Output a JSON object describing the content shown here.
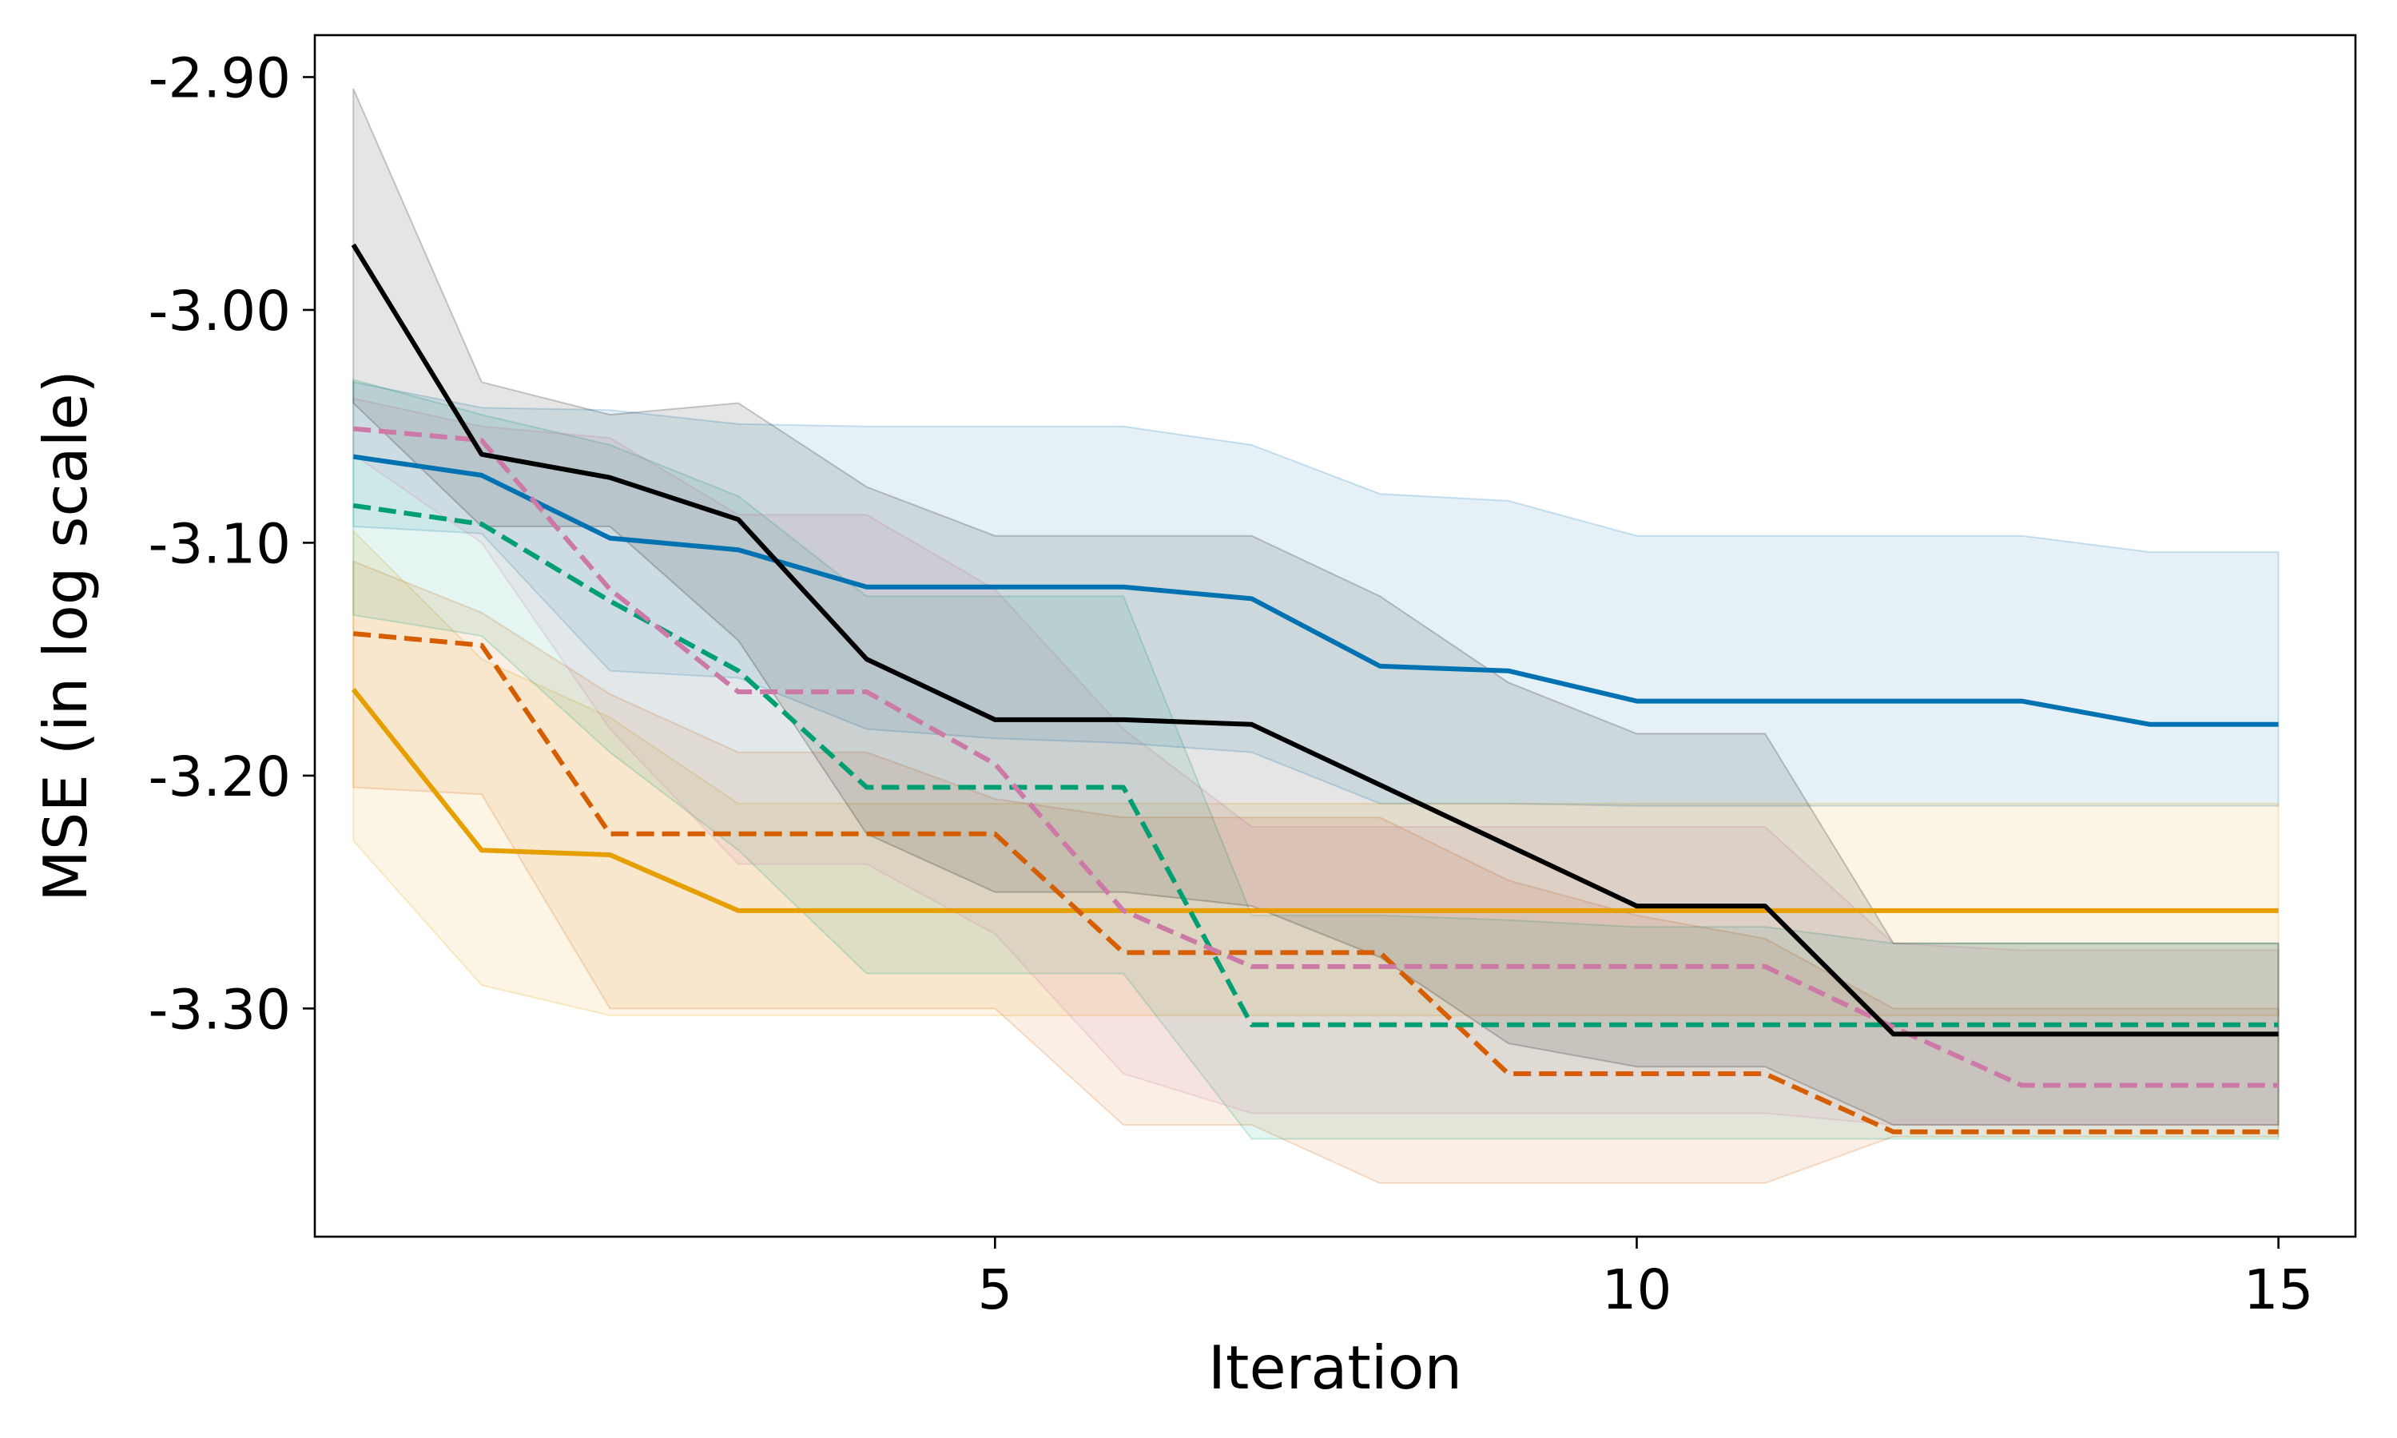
{
  "chart_data": {
    "type": "line",
    "title": "",
    "xlabel": "Iteration",
    "ylabel": "MSE (in log scale)",
    "xlim": [
      -0.3,
      15.6
    ],
    "ylim": [
      -3.398,
      -2.882
    ],
    "x_ticks": [
      5,
      10,
      15
    ],
    "x_tick_labels": [
      "5",
      "10",
      "15"
    ],
    "y_ticks": [
      -2.9,
      -3.0,
      -3.1,
      -3.2,
      -3.3
    ],
    "y_tick_labels": [
      "-2.90",
      "-3.00",
      "-3.10",
      "-3.20",
      "-3.30"
    ],
    "grid": false,
    "x": [
      0,
      1,
      2,
      3,
      4,
      5,
      6,
      7,
      8,
      9,
      10,
      11,
      12,
      13,
      14,
      15
    ],
    "series": [
      {
        "name": "blue",
        "color": "#0072b2",
        "dash": "solid",
        "values": [
          -3.063,
          -3.071,
          -3.098,
          -3.103,
          -3.119,
          -3.119,
          -3.119,
          -3.124,
          -3.153,
          -3.155,
          -3.168,
          -3.168,
          -3.168,
          -3.168,
          -3.178,
          -3.178
        ],
        "upper": [
          -3.031,
          -3.042,
          -3.043,
          -3.049,
          -3.05,
          -3.05,
          -3.05,
          -3.058,
          -3.079,
          -3.082,
          -3.097,
          -3.097,
          -3.097,
          -3.097,
          -3.104,
          -3.104
        ],
        "lower": [
          -3.093,
          -3.096,
          -3.155,
          -3.158,
          -3.18,
          -3.184,
          -3.186,
          -3.19,
          -3.212,
          -3.212,
          -3.213,
          -3.213,
          -3.213,
          -3.213,
          -3.213,
          -3.213
        ]
      },
      {
        "name": "orange",
        "color": "#e69f00",
        "dash": "solid",
        "values": [
          -3.163,
          -3.232,
          -3.234,
          -3.258,
          -3.258,
          -3.258,
          -3.258,
          -3.258,
          -3.258,
          -3.258,
          -3.258,
          -3.258,
          -3.258,
          -3.258,
          -3.258,
          -3.258
        ],
        "upper": [
          -3.095,
          -3.15,
          -3.175,
          -3.212,
          -3.212,
          -3.212,
          -3.212,
          -3.212,
          -3.212,
          -3.212,
          -3.212,
          -3.212,
          -3.212,
          -3.212,
          -3.212,
          -3.212
        ],
        "lower": [
          -3.228,
          -3.29,
          -3.303,
          -3.303,
          -3.303,
          -3.303,
          -3.303,
          -3.303,
          -3.303,
          -3.303,
          -3.303,
          -3.303,
          -3.303,
          -3.303,
          -3.303,
          -3.303
        ]
      },
      {
        "name": "vermillion",
        "color": "#d55e00",
        "dash": "dashed",
        "values": [
          -3.139,
          -3.144,
          -3.225,
          -3.225,
          -3.225,
          -3.225,
          -3.276,
          -3.276,
          -3.276,
          -3.328,
          -3.328,
          -3.328,
          -3.353,
          -3.353,
          -3.353,
          -3.353
        ],
        "upper": [
          -3.108,
          -3.13,
          -3.165,
          -3.19,
          -3.19,
          -3.21,
          -3.218,
          -3.218,
          -3.218,
          -3.245,
          -3.26,
          -3.27,
          -3.3,
          -3.3,
          -3.3,
          -3.3
        ],
        "lower": [
          -3.205,
          -3.208,
          -3.3,
          -3.3,
          -3.3,
          -3.3,
          -3.35,
          -3.35,
          -3.375,
          -3.375,
          -3.375,
          -3.375,
          -3.355,
          -3.355,
          -3.355,
          -3.355
        ]
      },
      {
        "name": "green",
        "color": "#009e73",
        "dash": "dashed",
        "values": [
          -3.084,
          -3.092,
          -3.125,
          -3.155,
          -3.205,
          -3.205,
          -3.205,
          -3.307,
          -3.307,
          -3.307,
          -3.307,
          -3.307,
          -3.307,
          -3.307,
          -3.307,
          -3.307
        ],
        "upper": [
          -3.03,
          -3.045,
          -3.058,
          -3.08,
          -3.123,
          -3.123,
          -3.123,
          -3.26,
          -3.26,
          -3.262,
          -3.265,
          -3.265,
          -3.272,
          -3.272,
          -3.272,
          -3.272
        ],
        "lower": [
          -3.131,
          -3.14,
          -3.19,
          -3.232,
          -3.285,
          -3.285,
          -3.285,
          -3.356,
          -3.356,
          -3.356,
          -3.356,
          -3.356,
          -3.356,
          -3.356,
          -3.356,
          -3.356
        ]
      },
      {
        "name": "pink",
        "color": "#cc79a7",
        "dash": "dashed",
        "values": [
          -3.051,
          -3.056,
          -3.12,
          -3.164,
          -3.164,
          -3.195,
          -3.258,
          -3.282,
          -3.282,
          -3.282,
          -3.282,
          -3.282,
          -3.308,
          -3.333,
          -3.333,
          -3.333
        ],
        "upper": [
          -3.038,
          -3.05,
          -3.055,
          -3.088,
          -3.088,
          -3.12,
          -3.18,
          -3.222,
          -3.222,
          -3.222,
          -3.222,
          -3.222,
          -3.272,
          -3.275,
          -3.275,
          -3.275
        ],
        "lower": [
          -3.062,
          -3.1,
          -3.18,
          -3.238,
          -3.238,
          -3.268,
          -3.328,
          -3.345,
          -3.345,
          -3.345,
          -3.345,
          -3.345,
          -3.35,
          -3.35,
          -3.35,
          -3.35
        ]
      },
      {
        "name": "black",
        "color": "#000000",
        "dash": "solid",
        "values": [
          -2.972,
          -3.062,
          -3.072,
          -3.09,
          -3.15,
          -3.176,
          -3.176,
          -3.178,
          -3.204,
          -3.23,
          -3.256,
          -3.256,
          -3.311,
          -3.311,
          -3.311,
          -3.311
        ],
        "upper": [
          -2.905,
          -3.031,
          -3.045,
          -3.04,
          -3.076,
          -3.097,
          -3.097,
          -3.097,
          -3.123,
          -3.16,
          -3.182,
          -3.182,
          -3.272,
          -3.272,
          -3.272,
          -3.272
        ],
        "lower": [
          -3.04,
          -3.093,
          -3.093,
          -3.142,
          -3.225,
          -3.25,
          -3.25,
          -3.256,
          -3.278,
          -3.315,
          -3.325,
          -3.325,
          -3.35,
          -3.35,
          -3.35,
          -3.35
        ]
      }
    ]
  }
}
